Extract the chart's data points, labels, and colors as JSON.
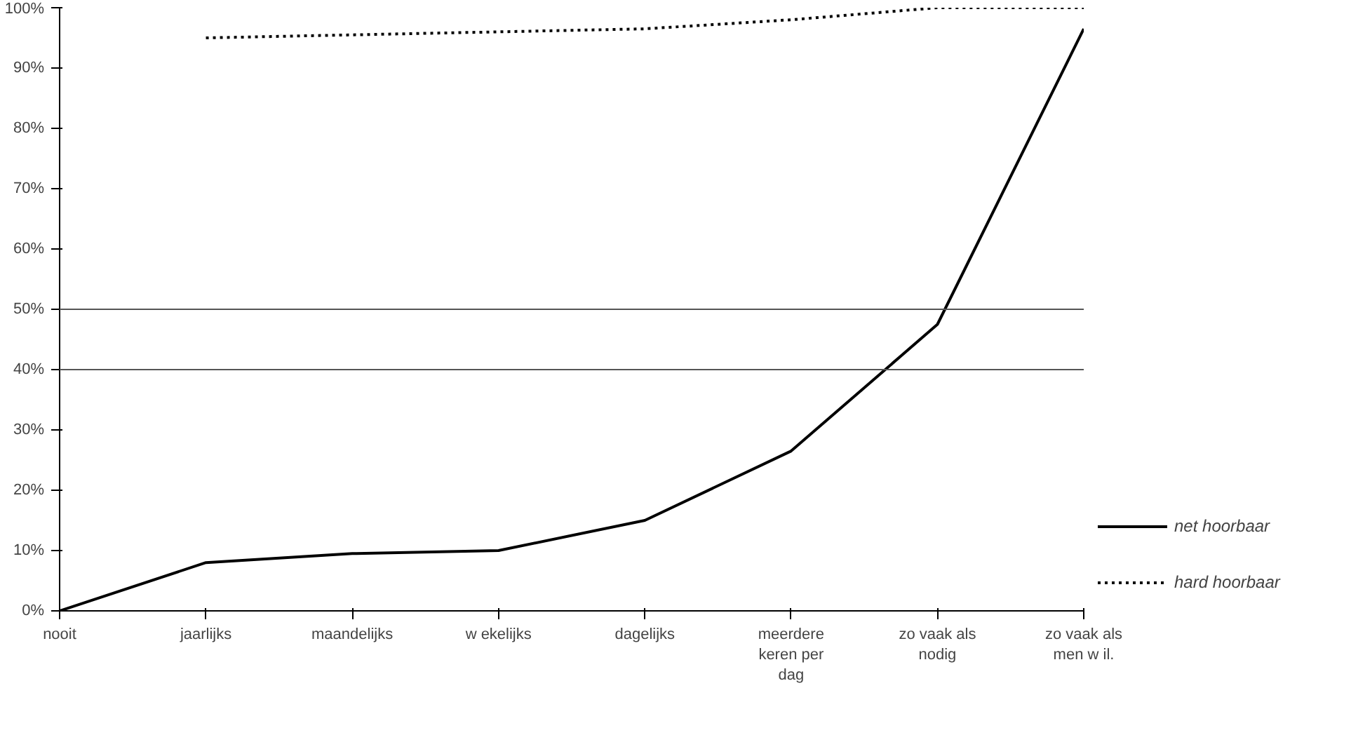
{
  "chart_data": {
    "type": "line",
    "categories": [
      "nooit",
      "jaarlijks",
      "maandelijks",
      "w ekelijks",
      "dagelijks",
      "meerdere keren per dag",
      "zo vaak als nodig",
      "zo vaak als men w il."
    ],
    "series": [
      {
        "name": "net hoorbaar",
        "color": "#000000",
        "line_style": "solid",
        "values": [
          0,
          8,
          9.5,
          10,
          15,
          26.5,
          47.5,
          96.5
        ]
      },
      {
        "name": "hard hoorbaar",
        "color": "#000000",
        "line_style": "dotted",
        "values": [
          null,
          95,
          95.5,
          96,
          96.5,
          98,
          100,
          100
        ]
      }
    ],
    "ylim": [
      0,
      100
    ],
    "yticks": [
      {
        "value": 0,
        "label": "0%"
      },
      {
        "value": 10,
        "label": "10%"
      },
      {
        "value": 20,
        "label": "20%"
      },
      {
        "value": 30,
        "label": "30%"
      },
      {
        "value": 40,
        "label": "40%"
      },
      {
        "value": 50,
        "label": "50%"
      },
      {
        "value": 60,
        "label": "60%"
      },
      {
        "value": 70,
        "label": "70%"
      },
      {
        "value": 80,
        "label": "80%"
      },
      {
        "value": 90,
        "label": "90%"
      },
      {
        "value": 100,
        "label": "100%"
      }
    ],
    "ref_lines": [
      {
        "axis": "y",
        "value": 40,
        "color": "#555555"
      },
      {
        "axis": "y",
        "value": 50,
        "color": "#555555"
      }
    ],
    "grid": false,
    "legend": "right",
    "marker": "none"
  }
}
